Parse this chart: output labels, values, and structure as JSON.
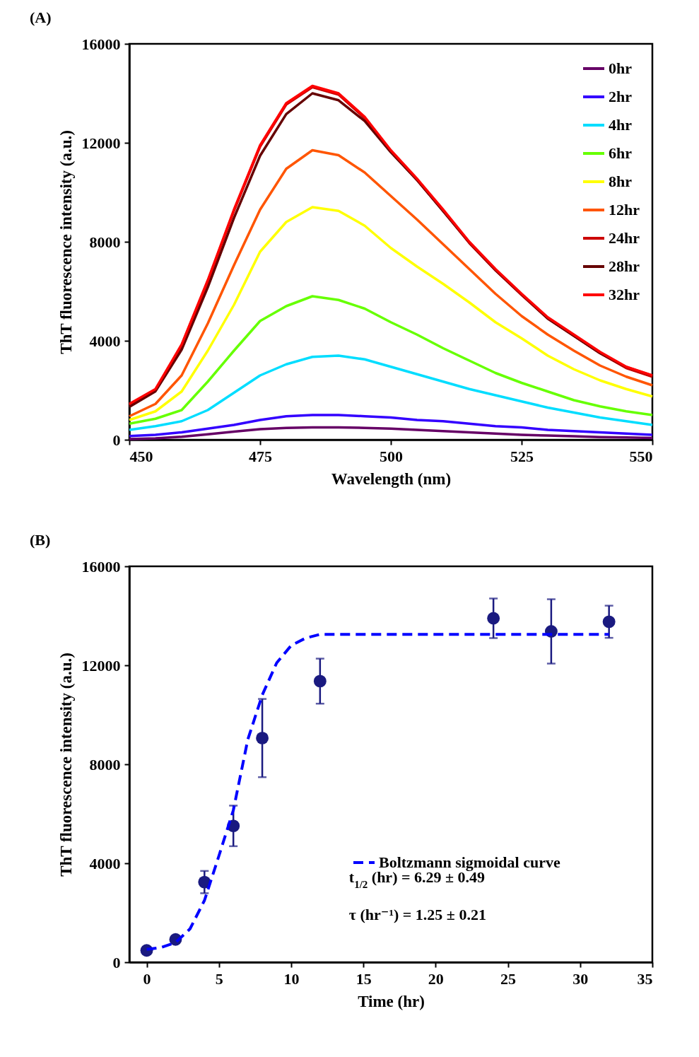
{
  "chart_data": [
    {
      "type": "line",
      "title": "(A)",
      "xlabel": "Wavelength (nm)",
      "ylabel": "ThT fluorescence  intensity (a.u.)",
      "x": [
        450,
        455,
        460,
        465,
        470,
        475,
        480,
        485,
        490,
        495,
        500,
        505,
        510,
        515,
        520,
        525,
        530,
        535,
        540,
        545,
        550
      ],
      "xlim": [
        450,
        550
      ],
      "xticks": [
        450,
        475,
        500,
        525,
        550
      ],
      "ylim": [
        0,
        16000
      ],
      "yticks": [
        0,
        4000,
        8000,
        12000,
        16000
      ],
      "legend": "top right",
      "series": [
        {
          "name": "0hr",
          "color": "#660066",
          "values": [
            30,
            60,
            120,
            220,
            330,
            430,
            480,
            500,
            500,
            480,
            450,
            400,
            350,
            300,
            250,
            200,
            170,
            140,
            110,
            90,
            70
          ]
        },
        {
          "name": "2hr",
          "color": "#3300ff",
          "values": [
            150,
            200,
            300,
            450,
            600,
            800,
            950,
            1000,
            1000,
            950,
            900,
            800,
            750,
            650,
            550,
            500,
            400,
            350,
            300,
            250,
            200
          ]
        },
        {
          "name": "4hr",
          "color": "#00ddff",
          "values": [
            400,
            550,
            750,
            1200,
            1900,
            2600,
            3050,
            3350,
            3400,
            3250,
            2950,
            2650,
            2350,
            2050,
            1800,
            1550,
            1300,
            1100,
            900,
            750,
            600
          ]
        },
        {
          "name": "6hr",
          "color": "#66ff00",
          "values": [
            650,
            850,
            1200,
            2350,
            3600,
            4800,
            5400,
            5800,
            5650,
            5300,
            4750,
            4250,
            3700,
            3200,
            2700,
            2300,
            1950,
            1600,
            1350,
            1150,
            1000
          ]
        },
        {
          "name": "8hr",
          "color": "#ffff00",
          "values": [
            800,
            1150,
            1950,
            3600,
            5450,
            7600,
            8800,
            9400,
            9250,
            8650,
            7750,
            7000,
            6300,
            5550,
            4750,
            4100,
            3400,
            2850,
            2400,
            2050,
            1750
          ]
        },
        {
          "name": "12hr",
          "color": "#ff5500",
          "values": [
            950,
            1450,
            2600,
            4700,
            7050,
            9300,
            10950,
            11700,
            11500,
            10800,
            9850,
            8900,
            7900,
            6900,
            5900,
            5000,
            4250,
            3600,
            3000,
            2550,
            2200
          ]
        },
        {
          "name": "24hr",
          "color": "#cc0000",
          "values": [
            1400,
            2000,
            3800,
            6400,
            9250,
            11850,
            13550,
            14250,
            13950,
            13000,
            11650,
            10500,
            9250,
            7950,
            6850,
            5850,
            4900,
            4200,
            3500,
            2900,
            2550
          ]
        },
        {
          "name": "28hr",
          "color": "#660000",
          "values": [
            1330,
            1960,
            3640,
            6160,
            8960,
            11480,
            13160,
            14000,
            13720,
            12880,
            11620,
            10500,
            9240,
            7980,
            6860,
            5880,
            4900,
            4200,
            3500,
            2940,
            2590
          ]
        },
        {
          "name": "32hr",
          "color": "#ff0000",
          "values": [
            1450,
            2050,
            3850,
            6450,
            9300,
            11900,
            13600,
            14300,
            14000,
            13050,
            11700,
            10550,
            9300,
            8000,
            6900,
            5900,
            4950,
            4250,
            3550,
            2950,
            2600
          ]
        }
      ]
    },
    {
      "type": "scatter",
      "title": "(B)",
      "xlabel": "Time (hr)",
      "ylabel": "ThT fluorescence  intensity (a.u.)",
      "xlim": [
        -1.2,
        35
      ],
      "xticks": [
        0,
        5,
        10,
        15,
        20,
        25,
        30,
        35
      ],
      "ylim": [
        0,
        16000
      ],
      "yticks": [
        0,
        4000,
        8000,
        12000,
        16000
      ],
      "legend": "bottom right",
      "annotations": [
        "t$_{1/2}$ (hr) = 6.29 ±  0.49",
        "τ  (hr⁻¹) = 1.25 ±  0.21"
      ],
      "series": [
        {
          "marker": "circle",
          "color": "#1a1a80",
          "x": [
            0,
            2,
            4,
            6,
            8,
            12,
            24,
            28,
            32
          ],
          "values": [
            480,
            920,
            3240,
            5510,
            9060,
            11360,
            13900,
            13370,
            13760
          ],
          "errors": [
            null,
            null,
            450,
            820,
            1580,
            910,
            800,
            1300,
            650
          ]
        },
        {
          "type": "line",
          "name": "Boltzmann sigmoidal curve",
          "color": "#0000ff",
          "line_style": "dashed",
          "x": [
            0,
            1,
            2,
            3,
            4,
            5,
            6,
            7,
            8,
            9,
            10,
            11,
            12,
            14,
            16,
            20,
            25,
            32
          ],
          "values": [
            520,
            600,
            800,
            1350,
            2500,
            4300,
            6150,
            9000,
            10800,
            12100,
            12800,
            13100,
            13250,
            13250,
            13250,
            13250,
            13250,
            13250
          ]
        }
      ]
    }
  ]
}
